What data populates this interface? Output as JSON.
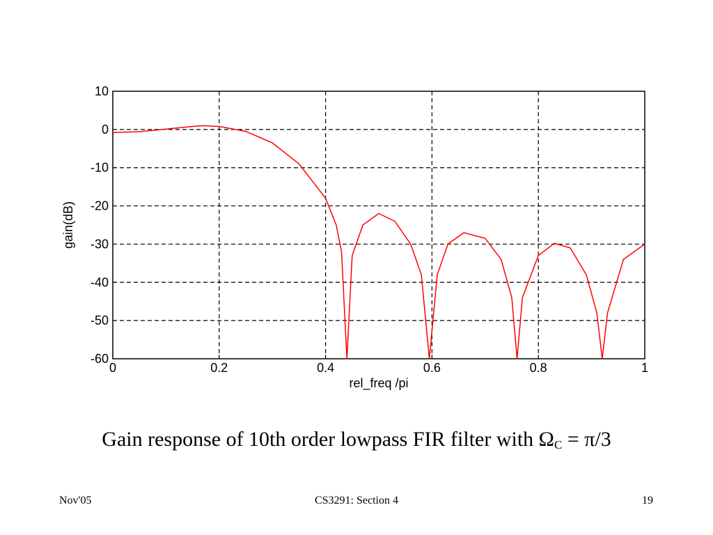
{
  "chart_data": {
    "type": "line",
    "title": "",
    "xlabel": "rel_freq /pi",
    "ylabel": "gain(dB)",
    "xlim": [
      0,
      1
    ],
    "ylim": [
      -60,
      10
    ],
    "xticks": [
      0,
      0.2,
      0.4,
      0.6,
      0.8,
      1
    ],
    "xtick_labels": [
      "0",
      "0.2",
      "0.4",
      "0.6",
      "0.8",
      "1"
    ],
    "yticks": [
      10,
      0,
      -10,
      -20,
      -30,
      -40,
      -50,
      -60
    ],
    "ytick_labels": [
      "10",
      "0",
      "-10",
      "-20",
      "-30",
      "-40",
      "-50",
      "-60"
    ],
    "grid": true,
    "series": [
      {
        "color": "#ff0000",
        "x": [
          0,
          0.05,
          0.1,
          0.15,
          0.17,
          0.2,
          0.25,
          0.3,
          0.35,
          0.4,
          0.42,
          0.43,
          0.44,
          0.45,
          0.47,
          0.5,
          0.53,
          0.56,
          0.58,
          0.595,
          0.61,
          0.63,
          0.66,
          0.7,
          0.73,
          0.75,
          0.76,
          0.77,
          0.8,
          0.83,
          0.86,
          0.89,
          0.91,
          0.92,
          0.93,
          0.96,
          1.0
        ],
        "y": [
          -0.8,
          -0.6,
          0.1,
          0.8,
          1.0,
          0.8,
          -0.5,
          -3.5,
          -9,
          -18,
          -25,
          -32,
          -60,
          -33,
          -25,
          -22,
          -24,
          -30,
          -38,
          -60,
          -38,
          -30,
          -27,
          -28.5,
          -34,
          -44,
          -60,
          -44,
          -33,
          -29.8,
          -31,
          -38,
          -48,
          -60,
          -48,
          -34,
          -30
        ]
      }
    ]
  },
  "caption": {
    "text": "Gain response of 10th order lowpass FIR filter with Ω",
    "subscript": "C",
    "suffix": " = π/3"
  },
  "footer": {
    "left": "Nov'05",
    "center": "CS3291: Section 4",
    "right": "19"
  }
}
